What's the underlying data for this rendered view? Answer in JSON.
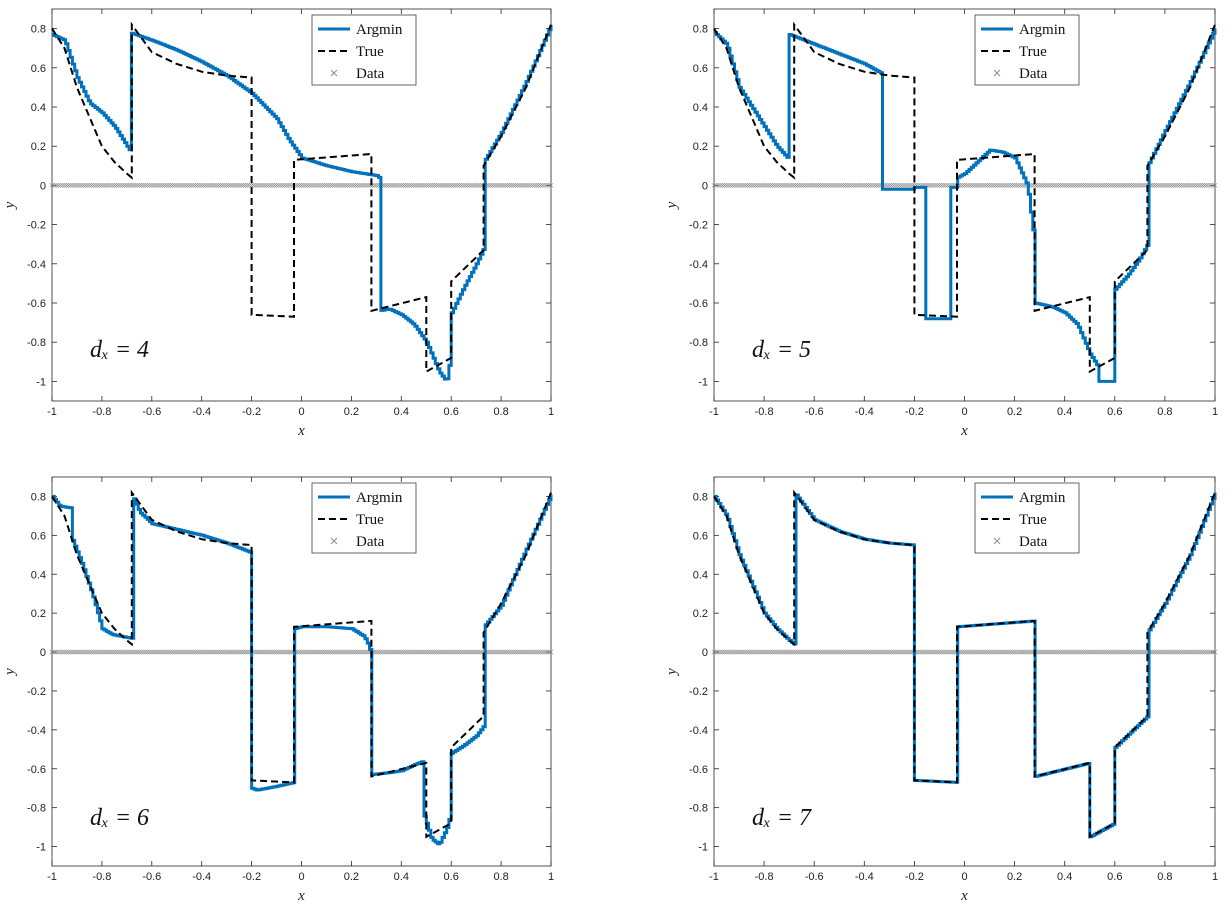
{
  "chart_data": [
    {
      "type": "line",
      "annotation": "d_x = 4",
      "xlabel": "x",
      "ylabel": "y",
      "xlim": [
        -1,
        1
      ],
      "ylim": [
        -1.1,
        0.9
      ],
      "xticks": [
        "-1",
        "-0.8",
        "-0.6",
        "-0.4",
        "-0.2",
        "0",
        "0.2",
        "0.4",
        "0.6",
        "0.8",
        "1"
      ],
      "yticks": [
        "-1",
        "-0.8",
        "-0.6",
        "-0.4",
        "-0.2",
        "0",
        "0.2",
        "0.4",
        "0.6",
        "0.8"
      ],
      "legend": [
        "Argmin",
        "True",
        "Data"
      ],
      "series": [
        {
          "name": "Argmin",
          "x": [
            -1.0,
            -0.95,
            -0.9,
            -0.85,
            -0.8,
            -0.75,
            -0.7,
            -0.69,
            -0.69,
            -0.6,
            -0.5,
            -0.4,
            -0.3,
            -0.2,
            -0.1,
            -0.05,
            0.0,
            0.05,
            0.1,
            0.2,
            0.3,
            0.31,
            0.31,
            0.35,
            0.4,
            0.45,
            0.5,
            0.55,
            0.58,
            0.6,
            0.6,
            0.65,
            0.7,
            0.73,
            0.73,
            0.8,
            0.9,
            1.0
          ],
          "y": [
            0.77,
            0.74,
            0.55,
            0.42,
            0.37,
            0.3,
            0.2,
            0.18,
            0.78,
            0.74,
            0.69,
            0.63,
            0.56,
            0.47,
            0.34,
            0.23,
            0.14,
            0.12,
            0.1,
            0.07,
            0.05,
            0.04,
            -0.64,
            -0.63,
            -0.66,
            -0.71,
            -0.8,
            -0.95,
            -1.0,
            -0.85,
            -0.65,
            -0.52,
            -0.4,
            -0.32,
            0.12,
            0.27,
            0.53,
            0.82
          ]
        },
        {
          "name": "True",
          "x": [
            -1.0,
            -0.95,
            -0.9,
            -0.85,
            -0.8,
            -0.75,
            -0.7,
            -0.68,
            -0.68,
            -0.6,
            -0.5,
            -0.4,
            -0.3,
            -0.2,
            -0.2,
            -0.03,
            -0.03,
            0.28,
            0.28,
            0.5,
            0.5,
            0.6,
            0.6,
            0.73,
            0.73,
            0.8,
            0.9,
            1.0
          ],
          "y": [
            0.8,
            0.7,
            0.5,
            0.35,
            0.2,
            0.12,
            0.06,
            0.04,
            0.82,
            0.68,
            0.62,
            0.58,
            0.56,
            0.55,
            -0.66,
            -0.67,
            0.13,
            0.16,
            -0.64,
            -0.57,
            -0.95,
            -0.88,
            -0.49,
            -0.33,
            0.1,
            0.25,
            0.5,
            0.82
          ]
        }
      ]
    },
    {
      "type": "line",
      "annotation": "d_x = 5",
      "xlabel": "x",
      "ylabel": "y",
      "xlim": [
        -1,
        1
      ],
      "ylim": [
        -1.1,
        0.9
      ],
      "xticks": [
        "-1",
        "-0.8",
        "-0.6",
        "-0.4",
        "-0.2",
        "0",
        "0.2",
        "0.4",
        "0.6",
        "0.8",
        "1"
      ],
      "yticks": [
        "-1",
        "-0.8",
        "-0.6",
        "-0.4",
        "-0.2",
        "0",
        "0.2",
        "0.4",
        "0.6",
        "0.8"
      ],
      "legend": [
        "Argmin",
        "True",
        "Data"
      ],
      "series": [
        {
          "name": "Argmin",
          "x": [
            -1.0,
            -0.95,
            -0.9,
            -0.85,
            -0.8,
            -0.75,
            -0.7,
            -0.7,
            -0.6,
            -0.5,
            -0.4,
            -0.33,
            -0.33,
            -0.2,
            -0.2,
            -0.16,
            -0.16,
            -0.06,
            -0.06,
            -0.03,
            -0.03,
            0.0,
            0.05,
            0.1,
            0.15,
            0.2,
            0.25,
            0.28,
            0.28,
            0.35,
            0.4,
            0.45,
            0.5,
            0.53,
            0.53,
            0.6,
            0.6,
            0.65,
            0.7,
            0.73,
            0.73,
            0.8,
            0.9,
            1.0
          ],
          "y": [
            0.78,
            0.72,
            0.5,
            0.4,
            0.3,
            0.2,
            0.13,
            0.77,
            0.72,
            0.67,
            0.62,
            0.57,
            -0.02,
            -0.02,
            -0.01,
            -0.01,
            -0.68,
            -0.68,
            -0.01,
            -0.01,
            0.04,
            0.06,
            0.12,
            0.18,
            0.17,
            0.14,
            0.0,
            -0.3,
            -0.6,
            -0.62,
            -0.65,
            -0.71,
            -0.86,
            -0.92,
            -1.0,
            -1.0,
            -0.53,
            -0.46,
            -0.37,
            -0.3,
            0.1,
            0.28,
            0.53,
            0.8
          ]
        },
        {
          "name": "True",
          "x": [
            -1.0,
            -0.95,
            -0.9,
            -0.85,
            -0.8,
            -0.75,
            -0.7,
            -0.68,
            -0.68,
            -0.6,
            -0.5,
            -0.4,
            -0.3,
            -0.2,
            -0.2,
            -0.03,
            -0.03,
            0.28,
            0.28,
            0.5,
            0.5,
            0.6,
            0.6,
            0.73,
            0.73,
            0.8,
            0.9,
            1.0
          ],
          "y": [
            0.8,
            0.7,
            0.5,
            0.35,
            0.2,
            0.12,
            0.06,
            0.04,
            0.82,
            0.68,
            0.62,
            0.58,
            0.56,
            0.55,
            -0.66,
            -0.67,
            0.13,
            0.16,
            -0.64,
            -0.57,
            -0.95,
            -0.88,
            -0.49,
            -0.33,
            0.1,
            0.25,
            0.5,
            0.82
          ]
        }
      ]
    },
    {
      "type": "line",
      "annotation": "d_x = 6",
      "xlabel": "x",
      "ylabel": "y",
      "xlim": [
        -1,
        1
      ],
      "ylim": [
        -1.1,
        0.9
      ],
      "xticks": [
        "-1",
        "-0.8",
        "-0.6",
        "-0.4",
        "-0.2",
        "0",
        "0.2",
        "0.4",
        "0.6",
        "0.8",
        "1"
      ],
      "yticks": [
        "-1",
        "-0.8",
        "-0.6",
        "-0.4",
        "-0.2",
        "0",
        "0.2",
        "0.4",
        "0.6",
        "0.8"
      ],
      "legend": [
        "Argmin",
        "True",
        "Data"
      ],
      "series": [
        {
          "name": "Argmin",
          "x": [
            -1.0,
            -0.97,
            -0.92,
            -0.92,
            -0.88,
            -0.84,
            -0.8,
            -0.76,
            -0.72,
            -0.68,
            -0.68,
            -0.65,
            -0.6,
            -0.5,
            -0.4,
            -0.3,
            -0.2,
            -0.2,
            -0.18,
            -0.1,
            -0.03,
            -0.03,
            0.0,
            0.1,
            0.2,
            0.25,
            0.27,
            0.28,
            0.28,
            0.35,
            0.4,
            0.45,
            0.49,
            0.49,
            0.52,
            0.55,
            0.58,
            0.6,
            0.6,
            0.65,
            0.7,
            0.73,
            0.73,
            0.8,
            0.9,
            1.0
          ],
          "y": [
            0.8,
            0.75,
            0.74,
            0.58,
            0.45,
            0.3,
            0.12,
            0.09,
            0.08,
            0.07,
            0.81,
            0.72,
            0.66,
            0.63,
            0.6,
            0.56,
            0.51,
            -0.7,
            -0.71,
            -0.69,
            -0.67,
            0.12,
            0.13,
            0.13,
            0.12,
            0.08,
            0.03,
            -0.03,
            -0.63,
            -0.62,
            -0.61,
            -0.58,
            -0.56,
            -0.84,
            -0.96,
            -0.99,
            -0.91,
            -0.82,
            -0.52,
            -0.48,
            -0.43,
            -0.38,
            0.13,
            0.24,
            0.53,
            0.81
          ]
        },
        {
          "name": "True",
          "x": [
            -1.0,
            -0.95,
            -0.9,
            -0.85,
            -0.8,
            -0.75,
            -0.7,
            -0.68,
            -0.68,
            -0.6,
            -0.5,
            -0.4,
            -0.3,
            -0.2,
            -0.2,
            -0.03,
            -0.03,
            0.28,
            0.28,
            0.5,
            0.5,
            0.6,
            0.6,
            0.73,
            0.73,
            0.8,
            0.9,
            1.0
          ],
          "y": [
            0.8,
            0.7,
            0.5,
            0.35,
            0.2,
            0.12,
            0.06,
            0.04,
            0.82,
            0.68,
            0.62,
            0.58,
            0.56,
            0.55,
            -0.66,
            -0.67,
            0.13,
            0.16,
            -0.64,
            -0.57,
            -0.95,
            -0.88,
            -0.49,
            -0.33,
            0.1,
            0.25,
            0.5,
            0.82
          ]
        }
      ]
    },
    {
      "type": "line",
      "annotation": "d_x = 7",
      "xlabel": "x",
      "ylabel": "y",
      "xlim": [
        -1,
        1
      ],
      "ylim": [
        -1.1,
        0.9
      ],
      "xticks": [
        "-1",
        "-0.8",
        "-0.6",
        "-0.4",
        "-0.2",
        "0",
        "0.2",
        "0.4",
        "0.6",
        "0.8",
        "1"
      ],
      "yticks": [
        "-1",
        "-0.8",
        "-0.6",
        "-0.4",
        "-0.2",
        "0",
        "0.2",
        "0.4",
        "0.6",
        "0.8"
      ],
      "legend": [
        "Argmin",
        "True",
        "Data"
      ],
      "series": [
        {
          "name": "Argmin",
          "x": [
            -1.0,
            -0.95,
            -0.9,
            -0.85,
            -0.8,
            -0.75,
            -0.7,
            -0.68,
            -0.68,
            -0.6,
            -0.5,
            -0.4,
            -0.3,
            -0.2,
            -0.2,
            -0.03,
            -0.03,
            0.28,
            0.28,
            0.5,
            0.5,
            0.6,
            0.6,
            0.73,
            0.73,
            0.8,
            0.9,
            1.0
          ],
          "y": [
            0.8,
            0.7,
            0.5,
            0.35,
            0.2,
            0.12,
            0.06,
            0.04,
            0.82,
            0.68,
            0.62,
            0.58,
            0.56,
            0.55,
            -0.66,
            -0.67,
            0.13,
            0.16,
            -0.64,
            -0.57,
            -0.95,
            -0.88,
            -0.49,
            -0.33,
            0.1,
            0.25,
            0.5,
            0.82
          ]
        },
        {
          "name": "True",
          "x": [
            -1.0,
            -0.95,
            -0.9,
            -0.85,
            -0.8,
            -0.75,
            -0.7,
            -0.68,
            -0.68,
            -0.6,
            -0.5,
            -0.4,
            -0.3,
            -0.2,
            -0.2,
            -0.03,
            -0.03,
            0.28,
            0.28,
            0.5,
            0.5,
            0.6,
            0.6,
            0.73,
            0.73,
            0.8,
            0.9,
            1.0
          ],
          "y": [
            0.8,
            0.7,
            0.5,
            0.35,
            0.2,
            0.12,
            0.06,
            0.04,
            0.82,
            0.68,
            0.62,
            0.58,
            0.56,
            0.55,
            -0.66,
            -0.67,
            0.13,
            0.16,
            -0.64,
            -0.57,
            -0.95,
            -0.88,
            -0.49,
            -0.33,
            0.1,
            0.25,
            0.5,
            0.82
          ]
        }
      ]
    }
  ],
  "colors": {
    "argmin": "#0072BD",
    "true": "#000000",
    "data": "#8c8c8c"
  }
}
